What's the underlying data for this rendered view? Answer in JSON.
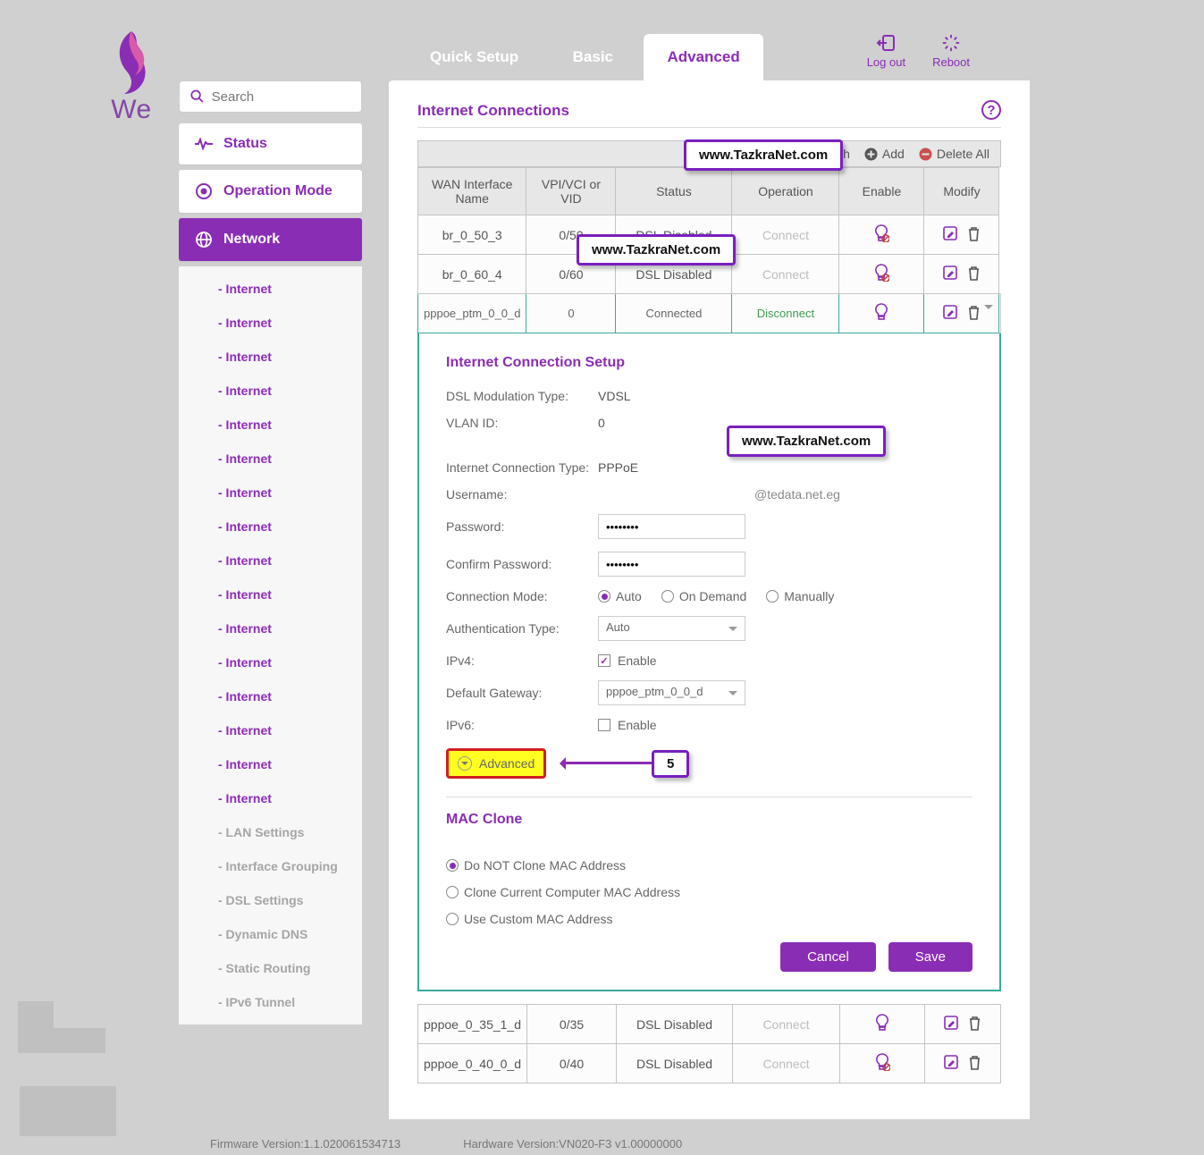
{
  "logo_text": "We",
  "tabs": {
    "quick": "Quick Setup",
    "basic": "Basic",
    "advanced": "Advanced"
  },
  "topright": {
    "logout": "Log out",
    "reboot": "Reboot"
  },
  "search_placeholder": "Search",
  "sidebar": {
    "status": "Status",
    "operation_mode": "Operation Mode",
    "network": "Network",
    "sub_internet": "- Internet",
    "lan": "- LAN Settings",
    "iface": "- Interface Grouping",
    "dsl": "- DSL Settings",
    "ddns": "- Dynamic DNS",
    "static": "- Static Routing",
    "ipv6t": "- IPv6 Tunnel"
  },
  "main": {
    "heading": "Internet Connections",
    "toolbar": {
      "refresh": "Refresh",
      "add": "Add",
      "delete": "Delete All"
    },
    "table": {
      "h1": "WAN Interface Name",
      "h2": "VPI/VCI or VID",
      "h3": "Status",
      "h4": "Operation",
      "h5": "Enable",
      "h6": "Modify",
      "rows": [
        {
          "n": "br_0_50_3",
          "v": "0/50",
          "s": "DSL Disabled",
          "o": "Connect",
          "disc": false,
          "bulb_off": true
        },
        {
          "n": "br_0_60_4",
          "v": "0/60",
          "s": "DSL Disabled",
          "o": "Connect",
          "disc": false,
          "bulb_off": true
        },
        {
          "n": "pppoe_ptm_0_0_d",
          "v": "0",
          "s": "Connected",
          "o": "Disconnect",
          "disc": true,
          "bulb_off": false
        }
      ],
      "extra": [
        {
          "n": "pppoe_0_35_1_d",
          "v": "0/35",
          "s": "DSL Disabled",
          "o": "Connect",
          "bulb_off": false
        },
        {
          "n": "pppoe_0_40_0_d",
          "v": "0/40",
          "s": "DSL Disabled",
          "o": "Connect",
          "bulb_off": true
        }
      ]
    },
    "setup": {
      "title": "Internet Connection Setup",
      "mod_lbl": "DSL Modulation Type:",
      "mod_val": "VDSL",
      "vlan_lbl": "VLAN ID:",
      "vlan_val": "0",
      "ict_lbl": "Internet Connection Type:",
      "ict_val": "PPPoE",
      "user_lbl": "Username:",
      "user_suffix": "@tedata.net.eg",
      "pwd_lbl": "Password:",
      "pwd_val": "••••••••",
      "cpwd_lbl": "Confirm Password:",
      "cpwd_val": "••••••••",
      "cm_lbl": "Connection Mode:",
      "cm_auto": "Auto",
      "cm_od": "On Demand",
      "cm_man": "Manually",
      "auth_lbl": "Authentication Type:",
      "auth_val": "Auto",
      "ipv4_lbl": "IPv4:",
      "enable_txt": "Enable",
      "gw_lbl": "Default Gateway:",
      "gw_val": "pppoe_ptm_0_0_d",
      "ipv6_lbl": "IPv6:",
      "adv_lbl": "Advanced",
      "mac_title": "MAC Clone",
      "mac1": "Do NOT Clone MAC Address",
      "mac2": "Clone Current Computer MAC Address",
      "mac3": "Use Custom MAC Address",
      "cancel": "Cancel",
      "save": "Save"
    },
    "callouts": {
      "wm": "www.TazkraNet.com",
      "num5": "5"
    }
  },
  "footer": {
    "fw": "Firmware Version:1.1.020061534713",
    "hw": "Hardware Version:VN020-F3 v1.00000000"
  }
}
